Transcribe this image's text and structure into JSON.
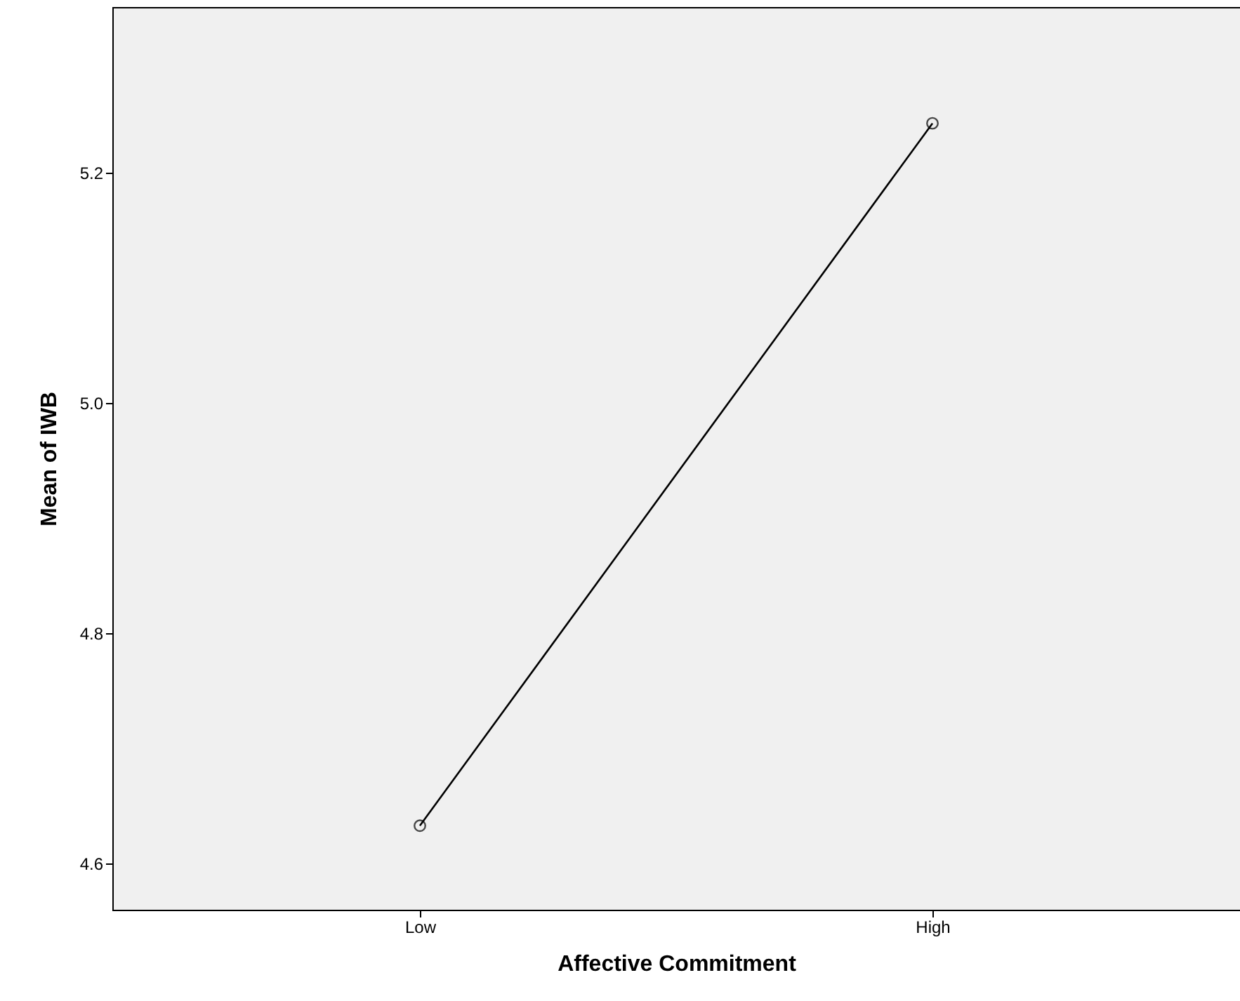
{
  "chart_data": {
    "type": "line",
    "xlabel": "Affective Commitment",
    "ylabel": "Mean of IWB",
    "categories": [
      "Low",
      "High"
    ],
    "series": [
      {
        "color": "#000000",
        "values": [
          4.633,
          5.243
        ]
      }
    ],
    "ylim": [
      4.56,
      5.344
    ],
    "yticks": [
      4.6,
      4.8,
      {
        "value": 5,
        "label": "5.0"
      },
      5.2
    ],
    "marker": "circle",
    "line_style": "solid",
    "grid": false
  }
}
